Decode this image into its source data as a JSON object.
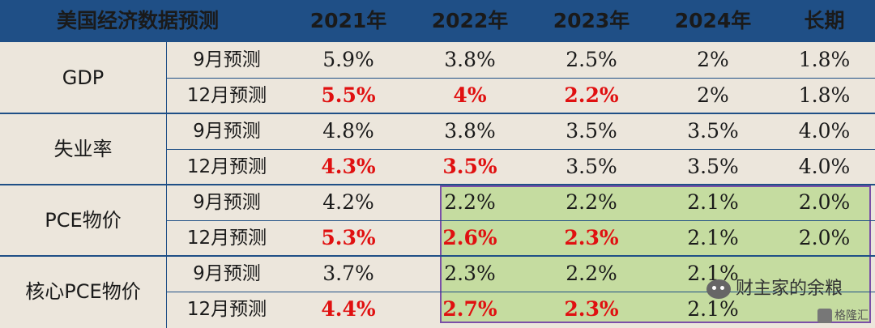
{
  "header": {
    "title": "美国经济数据预测",
    "years": [
      "2021年",
      "2022年",
      "2023年",
      "2024年",
      "长期"
    ]
  },
  "groups": [
    {
      "name": "GDP",
      "rows": [
        {
          "label": "9月预测",
          "values": [
            "5.9%",
            "3.8%",
            "2.5%",
            "2%",
            "1.8%"
          ]
        },
        {
          "label": "12月预测",
          "values": [
            "5.5%",
            "4%",
            "2.2%",
            "2%",
            "1.8%"
          ]
        }
      ]
    },
    {
      "name": "失业率",
      "rows": [
        {
          "label": "9月预测",
          "values": [
            "4.8%",
            "3.8%",
            "3.5%",
            "3.5%",
            "4.0%"
          ]
        },
        {
          "label": "12月预测",
          "values": [
            "4.3%",
            "3.5%",
            "3.5%",
            "3.5%",
            "4.0%"
          ]
        }
      ]
    },
    {
      "name": "PCE物价",
      "rows": [
        {
          "label": "9月预测",
          "values": [
            "4.2%",
            "2.2%",
            "2.2%",
            "2.1%",
            "2.0%"
          ]
        },
        {
          "label": "12月预测",
          "values": [
            "5.3%",
            "2.6%",
            "2.3%",
            "2.1%",
            "2.0%"
          ]
        }
      ]
    },
    {
      "name": "核心PCE物价",
      "rows": [
        {
          "label": "9月预测",
          "values": [
            "3.7%",
            "2.3%",
            "2.2%",
            "2.1%",
            ""
          ]
        },
        {
          "label": "12月预测",
          "values": [
            "4.4%",
            "2.7%",
            "2.3%",
            "2.1%",
            ""
          ]
        }
      ]
    }
  ],
  "watermark": {
    "text": "财主家的余粮"
  },
  "logo": {
    "text": "格隆汇"
  },
  "colors": {
    "header_bg": "#1f4f86",
    "highlight": "#e01010",
    "green_box": "#c5dca0",
    "box_border": "#7b4fa8"
  }
}
